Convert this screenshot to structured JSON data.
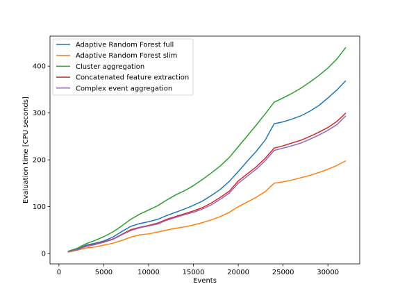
{
  "chart_data": {
    "type": "line",
    "title": "",
    "xlabel": "Events",
    "ylabel": "Evaluation time [CPU seconds]",
    "xlim": [
      -1000,
      33550
    ],
    "ylim": [
      -22,
      464
    ],
    "x_ticks": [
      0,
      5000,
      10000,
      15000,
      20000,
      25000,
      30000
    ],
    "x_tick_labels": [
      "0",
      "5000",
      "10000",
      "15000",
      "20000",
      "25000",
      "30000"
    ],
    "y_ticks": [
      0,
      100,
      200,
      300,
      400
    ],
    "y_tick_labels": [
      "0",
      "100",
      "200",
      "300",
      "400"
    ],
    "grid": false,
    "legend_position": "upper-left",
    "x": [
      1000,
      2000,
      3000,
      4000,
      5000,
      6000,
      7000,
      8000,
      9000,
      10000,
      11000,
      12000,
      13000,
      14000,
      15000,
      16000,
      17000,
      18000,
      19000,
      20000,
      21000,
      22000,
      23000,
      24000,
      25000,
      26000,
      27000,
      28000,
      29000,
      30000,
      31000,
      32000
    ],
    "series": [
      {
        "name": "Adaptive Random Forest full",
        "color": "#1f77b4",
        "values": [
          4,
          9,
          18,
          22,
          27,
          35,
          47,
          58,
          64,
          68,
          73,
          81,
          88,
          95,
          103,
          112,
          124,
          137,
          154,
          175,
          197,
          218,
          242,
          277,
          281,
          287,
          294,
          304,
          316,
          332,
          349,
          369
        ]
      },
      {
        "name": "Adaptive Random Forest slim",
        "color": "#ff7f0e",
        "values": [
          3,
          7,
          12,
          14,
          18,
          22,
          28,
          35,
          40,
          42,
          46,
          50,
          54,
          57,
          61,
          66,
          72,
          79,
          88,
          100,
          110,
          120,
          132,
          150,
          153,
          157,
          162,
          167,
          173,
          180,
          188,
          198
        ]
      },
      {
        "name": "Cluster aggregation",
        "color": "#2ca02c",
        "values": [
          5,
          11,
          21,
          28,
          36,
          46,
          59,
          73,
          84,
          93,
          102,
          114,
          125,
          134,
          145,
          158,
          172,
          187,
          205,
          228,
          251,
          274,
          298,
          323,
          332,
          342,
          353,
          366,
          380,
          396,
          415,
          440
        ]
      },
      {
        "name": "Concatenated feature extraction",
        "color": "#d62728",
        "values": [
          4,
          8,
          16,
          20,
          25,
          31,
          41,
          51,
          56,
          60,
          65,
          73,
          79,
          85,
          91,
          98,
          108,
          120,
          133,
          155,
          170,
          185,
          203,
          225,
          230,
          236,
          242,
          250,
          259,
          269,
          282,
          300
        ]
      },
      {
        "name": "Complex event aggregation",
        "color": "#9467bd",
        "values": [
          4,
          8,
          15,
          19,
          24,
          30,
          40,
          49,
          55,
          59,
          63,
          71,
          77,
          83,
          88,
          95,
          104,
          116,
          129,
          150,
          165,
          180,
          198,
          220,
          225,
          230,
          236,
          244,
          253,
          263,
          275,
          294
        ]
      }
    ]
  }
}
